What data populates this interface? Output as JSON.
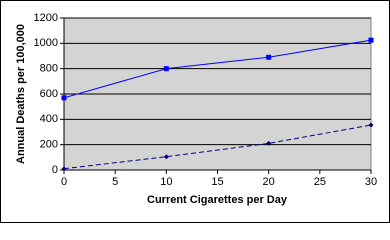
{
  "chart_data": {
    "type": "line",
    "x_label": "Current Cigarettes per Day",
    "y_label": "Annual Deaths per 100,000",
    "xlim": [
      0,
      30
    ],
    "xticks": [
      0,
      5,
      10,
      15,
      20,
      25,
      30
    ],
    "ylim": [
      0,
      1200
    ],
    "yticks": [
      0,
      200,
      400,
      600,
      800,
      1000,
      1200
    ],
    "grid": true,
    "plot_background": "#d4d4d4",
    "series": [
      {
        "color": "#0000ff",
        "line_style": "solid",
        "marker": "square",
        "x": [
          0,
          10,
          20,
          30
        ],
        "values": [
          570,
          800,
          890,
          1025
        ]
      },
      {
        "color": "#000080",
        "line_style": "dashed",
        "marker": "diamond",
        "x": [
          0,
          10,
          20,
          30
        ],
        "values": [
          10,
          105,
          210,
          355
        ]
      }
    ]
  }
}
